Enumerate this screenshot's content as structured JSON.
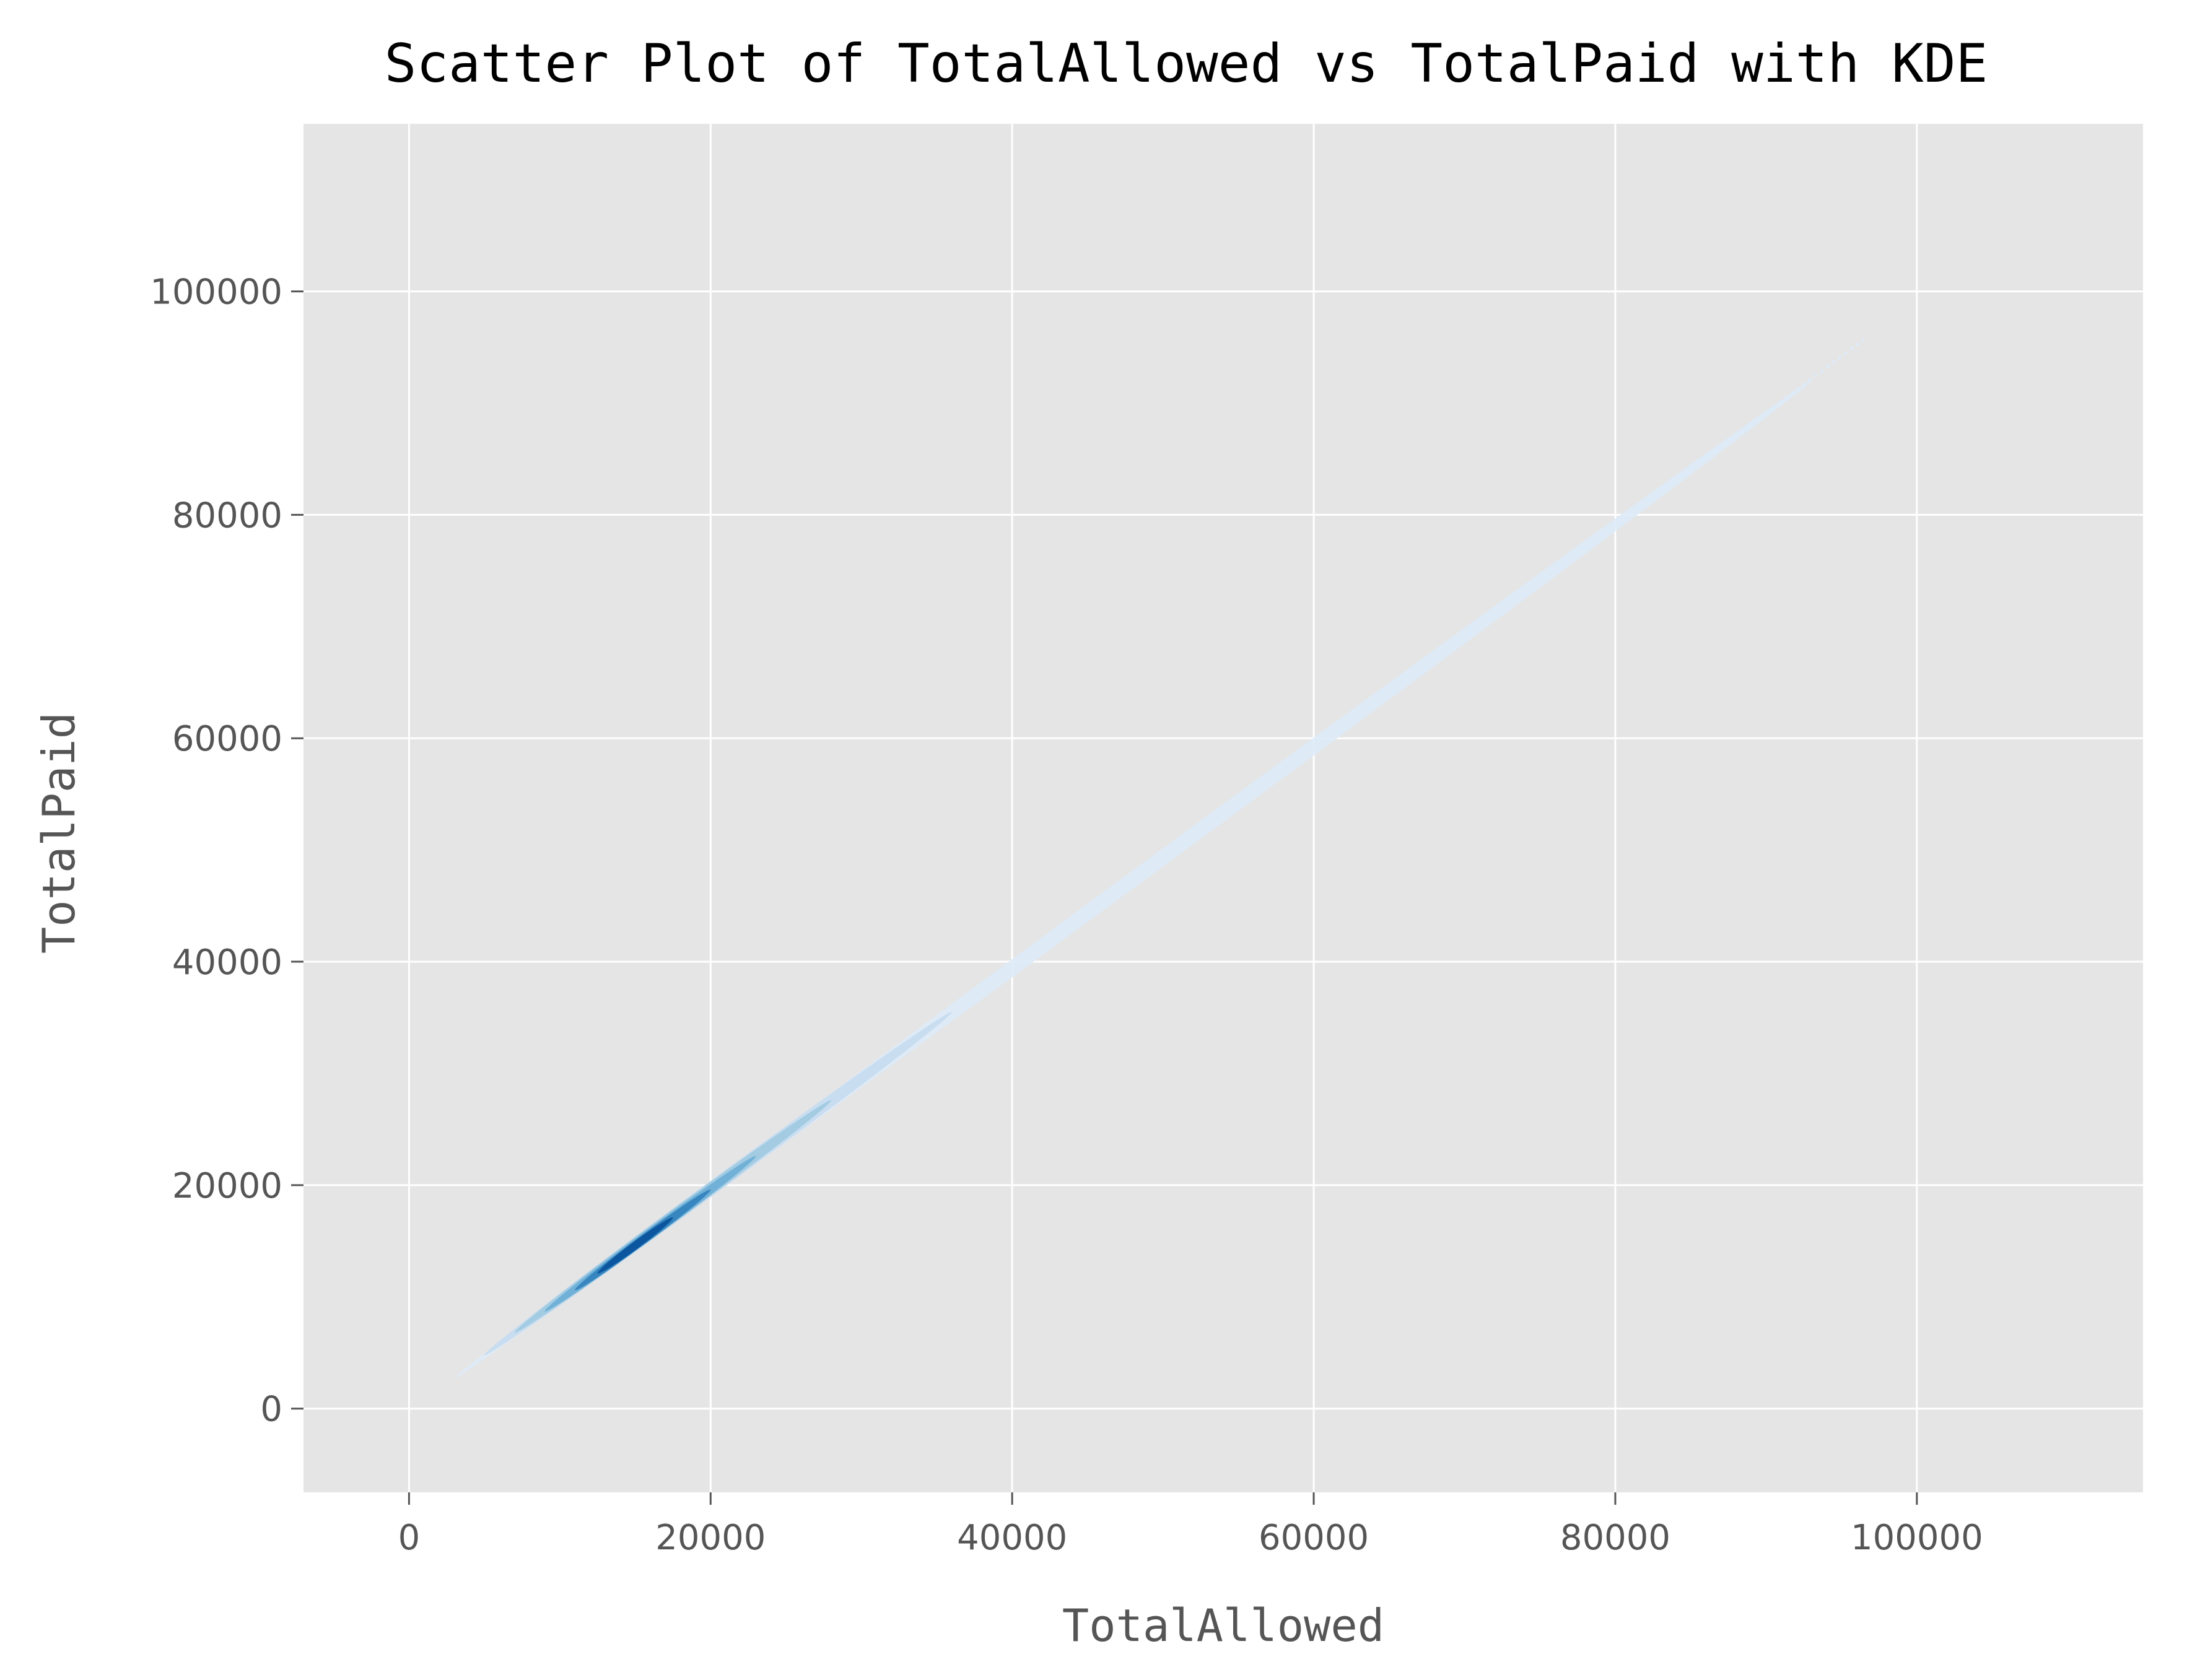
{
  "chart_data": {
    "type": "scatter",
    "title": "Scatter Plot of TotalAllowed vs TotalPaid with KDE",
    "xlabel": "TotalAllowed",
    "ylabel": "TotalPaid",
    "xlim": [
      -7000,
      115000
    ],
    "ylim": [
      -7500,
      115000
    ],
    "xticks": [
      0,
      20000,
      40000,
      60000,
      80000,
      100000
    ],
    "yticks": [
      0,
      20000,
      40000,
      60000,
      80000,
      100000
    ],
    "grid": true,
    "background_color": "#e5e5e5",
    "kde": {
      "colormap": "Blues",
      "x_range": [
        3000,
        96500
      ],
      "y_range": [
        2700,
        95700
      ],
      "density_peak_x": 14000,
      "levels": [
        {
          "x0": 3000,
          "y0": 2700,
          "x1": 93000,
          "y1": 92000,
          "color": "#ddeaf7"
        },
        {
          "x0": 5000,
          "y0": 4800,
          "x1": 36000,
          "y1": 35500,
          "color": "#c6dbef"
        },
        {
          "x0": 7000,
          "y0": 6800,
          "x1": 28000,
          "y1": 27600,
          "color": "#9ecae1"
        },
        {
          "x0": 9000,
          "y0": 8700,
          "x1": 23000,
          "y1": 22600,
          "color": "#6baed6"
        },
        {
          "x0": 11000,
          "y0": 10600,
          "x1": 20000,
          "y1": 19600,
          "color": "#3182bd"
        },
        {
          "x0": 12500,
          "y0": 12100,
          "x1": 17500,
          "y1": 17100,
          "color": "#08519c"
        }
      ],
      "tail": {
        "x0": 60000,
        "y0": 59000,
        "x1": 96500,
        "y1": 95700,
        "color": "#ddeaf7"
      }
    }
  }
}
